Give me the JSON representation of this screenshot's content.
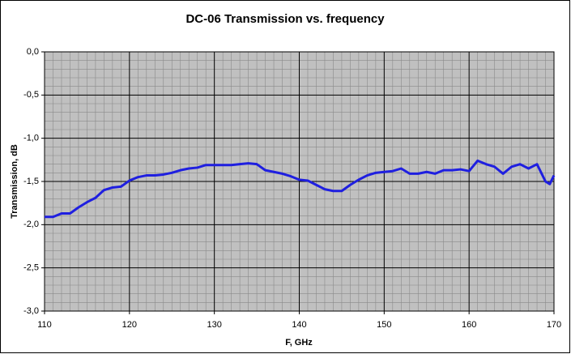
{
  "chart_data": {
    "type": "line",
    "title": "DC-06 Transmission vs. frequency",
    "x_label": "F, GHz",
    "y_label": "Transmission, dB",
    "x": [
      110,
      111,
      112,
      113,
      114,
      115,
      116,
      117,
      118,
      119,
      120,
      121,
      122,
      123,
      124,
      125,
      126,
      127,
      128,
      129,
      130,
      131,
      132,
      133,
      134,
      135,
      136,
      137,
      138,
      139,
      140,
      141,
      142,
      143,
      144,
      145,
      146,
      147,
      148,
      149,
      150,
      151,
      152,
      153,
      154,
      155,
      156,
      157,
      158,
      159,
      160,
      161,
      162,
      163,
      164,
      165,
      166,
      167,
      168,
      169,
      169.5,
      170
    ],
    "series": [
      {
        "name": "Transmission",
        "color": "#1f1fe0",
        "values": [
          -1.91,
          -1.91,
          -1.87,
          -1.87,
          -1.8,
          -1.74,
          -1.69,
          -1.6,
          -1.57,
          -1.56,
          -1.49,
          -1.45,
          -1.43,
          -1.43,
          -1.42,
          -1.4,
          -1.37,
          -1.35,
          -1.34,
          -1.31,
          -1.31,
          -1.31,
          -1.31,
          -1.3,
          -1.29,
          -1.3,
          -1.37,
          -1.39,
          -1.41,
          -1.44,
          -1.48,
          -1.49,
          -1.54,
          -1.59,
          -1.61,
          -1.61,
          -1.54,
          -1.48,
          -1.43,
          -1.4,
          -1.39,
          -1.38,
          -1.35,
          -1.41,
          -1.41,
          -1.39,
          -1.41,
          -1.37,
          -1.37,
          -1.36,
          -1.38,
          -1.26,
          -1.3,
          -1.33,
          -1.41,
          -1.33,
          -1.3,
          -1.35,
          -1.3,
          -1.5,
          -1.53,
          -1.43
        ]
      }
    ],
    "xlim": [
      110,
      170
    ],
    "xticks": [
      110,
      120,
      130,
      140,
      150,
      160,
      170
    ],
    "ylim": [
      -3,
      0
    ],
    "yticks": [
      {
        "value": 0,
        "label": "0,0"
      },
      {
        "value": -0.5,
        "label": "-0,5"
      },
      {
        "value": -1,
        "label": "-1,0"
      },
      {
        "value": -1.5,
        "label": "-1,5"
      },
      {
        "value": -2,
        "label": "-2,0"
      },
      {
        "value": -2.5,
        "label": "-2,5"
      },
      {
        "value": -3,
        "label": "-3,0"
      }
    ],
    "grid": true,
    "minor_grid": true,
    "legend": false
  }
}
